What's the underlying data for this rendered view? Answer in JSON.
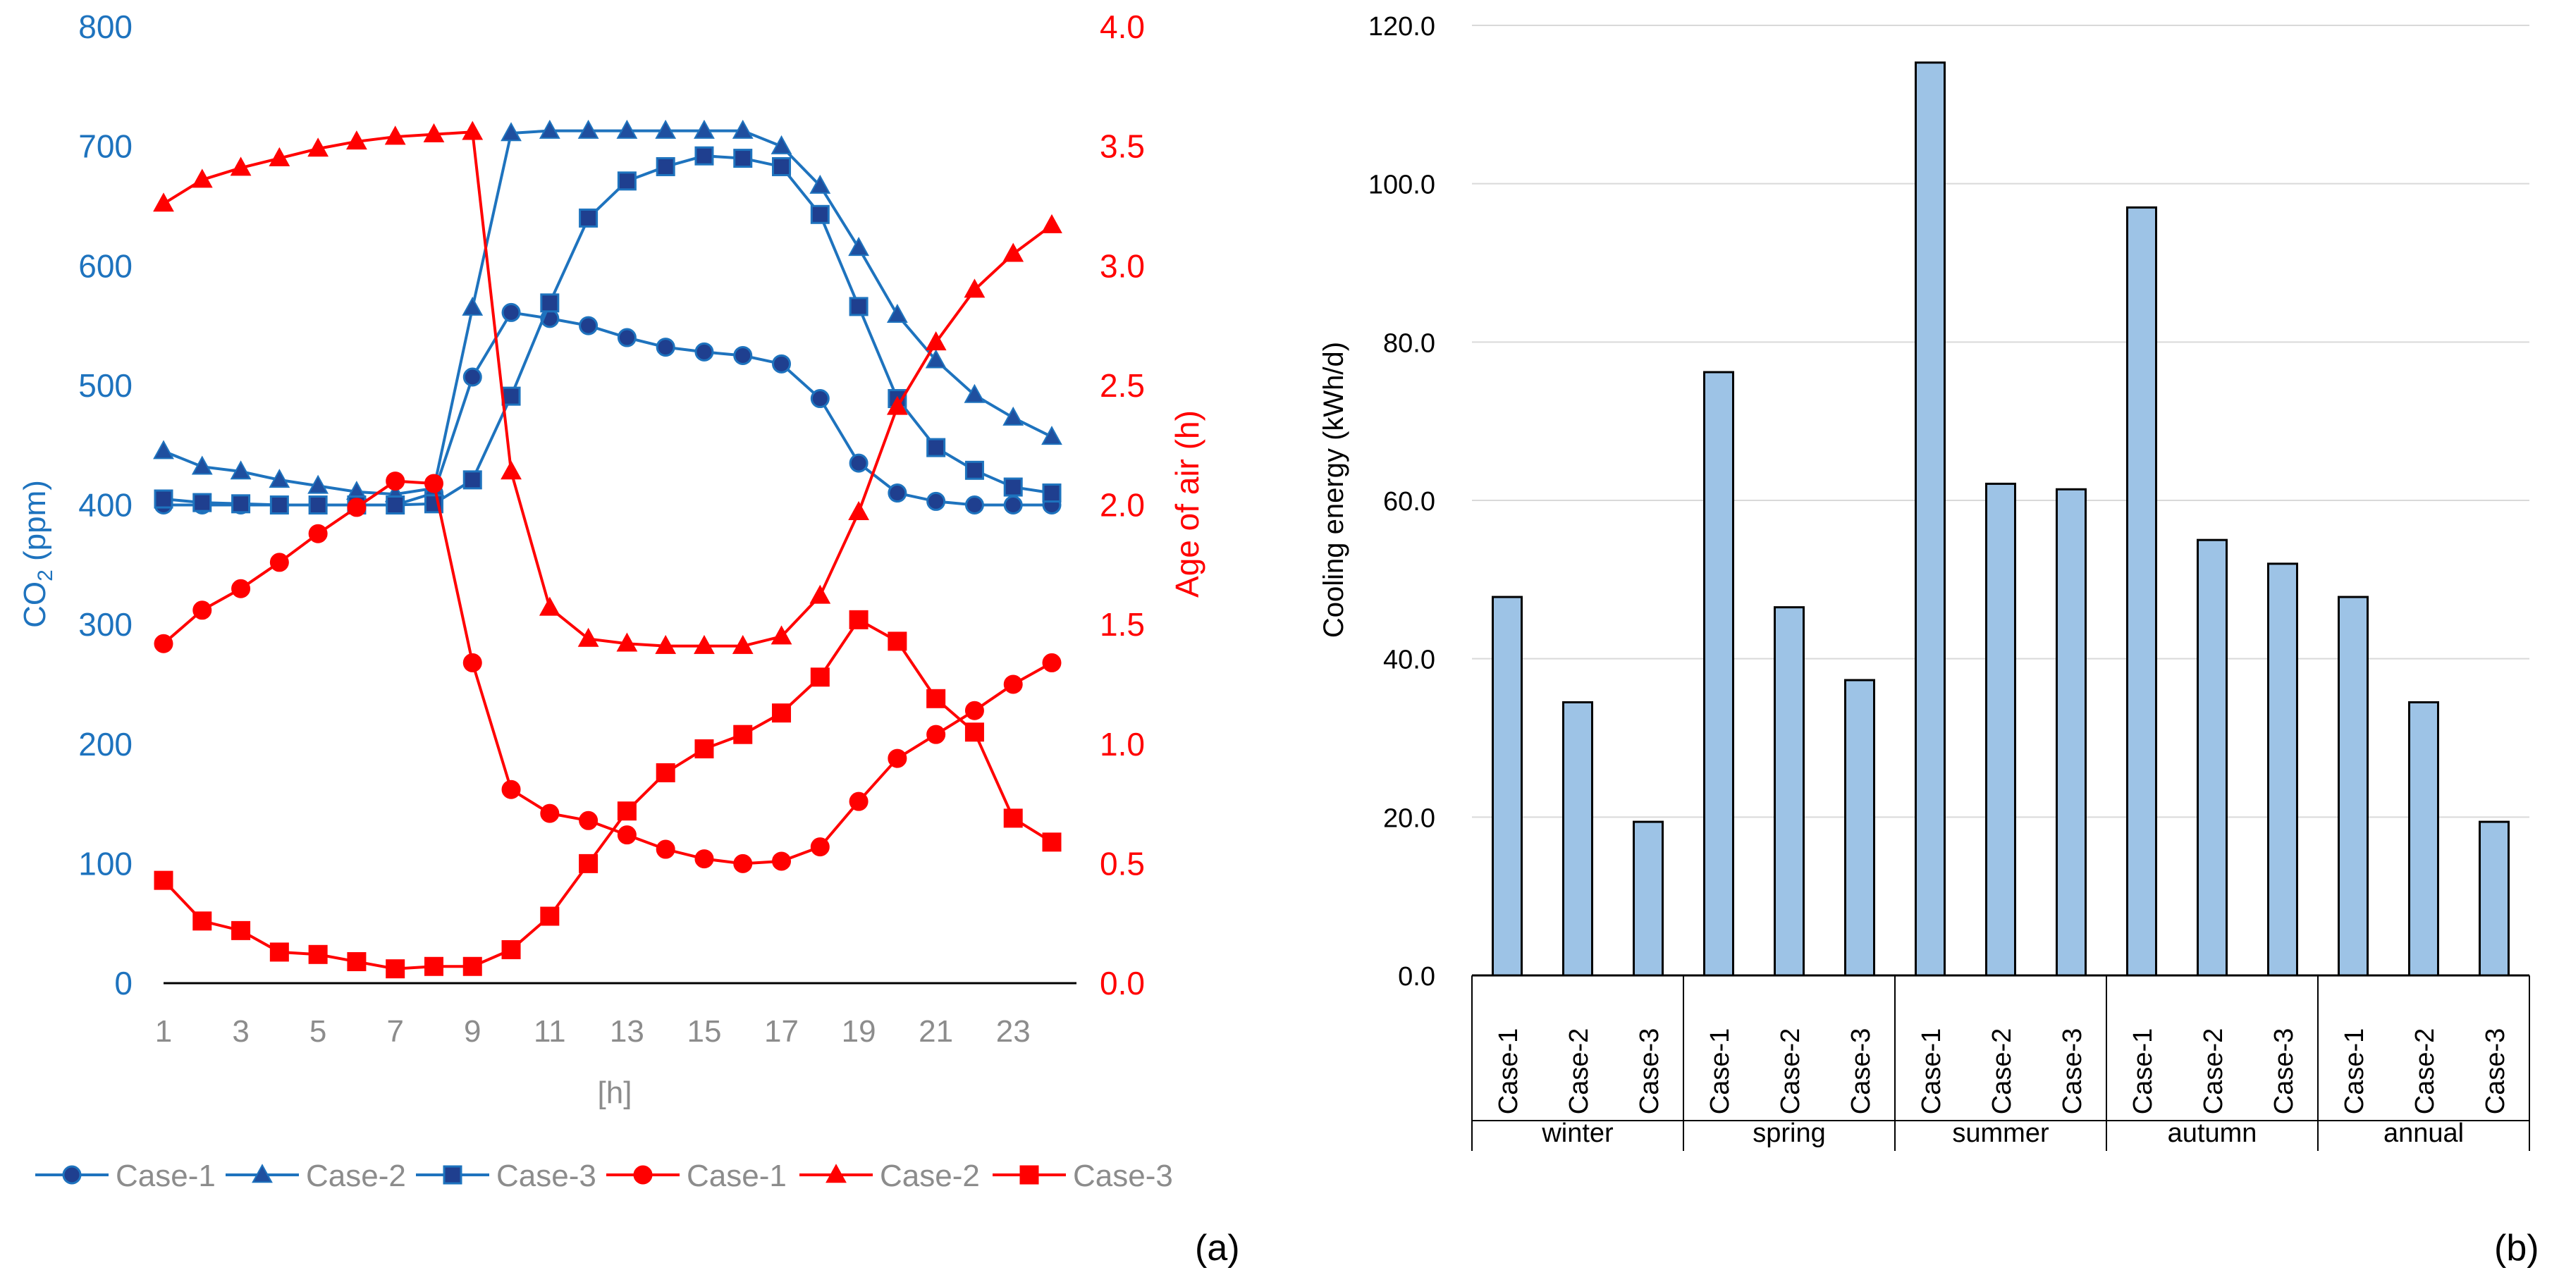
{
  "chart_data": [
    {
      "type": "line",
      "panel_label": "(a)",
      "xlabel": "[h]",
      "x": [
        1,
        2,
        3,
        4,
        5,
        6,
        7,
        8,
        9,
        10,
        11,
        12,
        13,
        14,
        15,
        16,
        17,
        18,
        19,
        20,
        21,
        22,
        23,
        24
      ],
      "x_tick_labels": [
        "1",
        "3",
        "5",
        "7",
        "9",
        "11",
        "13",
        "15",
        "17",
        "19",
        "21",
        "23"
      ],
      "y_left": {
        "label_main": "CO",
        "label_sub": "2",
        "label_rest": " (ppm)",
        "lim": [
          0,
          800
        ],
        "tick_labels": [
          "0",
          "100",
          "200",
          "300",
          "400",
          "500",
          "600",
          "700",
          "800"
        ]
      },
      "y_right": {
        "label": "Age of air (h)",
        "lim": [
          0,
          4
        ],
        "tick_labels": [
          "0.0",
          "0.5",
          "1.0",
          "1.5",
          "2.0",
          "2.5",
          "3.0",
          "3.5",
          "4.0"
        ]
      },
      "series": [
        {
          "name": "Case-1",
          "axis": "left",
          "marker": "circle",
          "color": "#1E73BE",
          "values": [
            400,
            400,
            400,
            400,
            400,
            400,
            400,
            410,
            507,
            561,
            556,
            550,
            540,
            532,
            528,
            525,
            518,
            489,
            435,
            410,
            403,
            400,
            400,
            400
          ]
        },
        {
          "name": "Case-2",
          "axis": "left",
          "marker": "triangle",
          "color": "#1E73BE",
          "values": [
            445,
            432,
            428,
            421,
            416,
            411,
            409,
            414,
            565,
            711,
            713,
            713,
            713,
            713,
            713,
            713,
            700,
            667,
            615,
            559,
            521,
            492,
            473,
            457
          ]
        },
        {
          "name": "Case-3",
          "axis": "left",
          "marker": "square",
          "color": "#1E73BE",
          "values": [
            405,
            402,
            401,
            400,
            400,
            400,
            400,
            401,
            421,
            491,
            569,
            640,
            671,
            683,
            692,
            690,
            683,
            643,
            566,
            489,
            448,
            429,
            415,
            410
          ]
        },
        {
          "name": "Case-1",
          "axis": "right",
          "marker": "circle",
          "color": "#FF0000",
          "values": [
            1.42,
            1.56,
            1.65,
            1.76,
            1.88,
            1.99,
            2.1,
            2.09,
            1.34,
            0.81,
            0.71,
            0.68,
            0.62,
            0.56,
            0.52,
            0.5,
            0.51,
            0.57,
            0.76,
            0.94,
            1.04,
            1.14,
            1.25,
            1.34
          ]
        },
        {
          "name": "Case-2",
          "axis": "right",
          "marker": "triangle",
          "color": "#FF0000",
          "values": [
            3.26,
            3.36,
            3.41,
            3.45,
            3.49,
            3.52,
            3.54,
            3.55,
            3.56,
            2.14,
            1.57,
            1.44,
            1.42,
            1.41,
            1.41,
            1.41,
            1.45,
            1.62,
            1.97,
            2.41,
            2.68,
            2.9,
            3.05,
            3.17
          ]
        },
        {
          "name": "Case-3",
          "axis": "right",
          "marker": "square",
          "color": "#FF0000",
          "values": [
            0.43,
            0.26,
            0.22,
            0.13,
            0.12,
            0.09,
            0.06,
            0.07,
            0.07,
            0.14,
            0.28,
            0.5,
            0.72,
            0.88,
            0.98,
            1.04,
            1.13,
            1.28,
            1.52,
            1.43,
            1.19,
            1.05,
            0.69,
            0.59
          ]
        }
      ],
      "legend": {
        "position": "bottom",
        "entries": [
          "Case-1",
          "Case-2",
          "Case-3",
          "Case-1",
          "Case-2",
          "Case-3"
        ]
      }
    },
    {
      "type": "bar",
      "panel_label": "(b)",
      "ylabel": "Cooling energy (kWh/d)",
      "ylim": [
        0,
        120
      ],
      "y_tick_labels": [
        "0.0",
        "20.0",
        "40.0",
        "60.0",
        "80.0",
        "100.0",
        "120.0"
      ],
      "bar_color": "#9DC3E6",
      "groups": [
        {
          "label": "winter",
          "categories": [
            "Case-1",
            "Case-2",
            "Case-3"
          ],
          "values": [
            47.8,
            34.5,
            19.4
          ]
        },
        {
          "label": "spring",
          "categories": [
            "Case-1",
            "Case-2",
            "Case-3"
          ],
          "values": [
            76.2,
            46.5,
            37.3
          ]
        },
        {
          "label": "summer",
          "categories": [
            "Case-1",
            "Case-2",
            "Case-3"
          ],
          "values": [
            115.3,
            62.1,
            61.4
          ]
        },
        {
          "label": "autumn",
          "categories": [
            "Case-1",
            "Case-2",
            "Case-3"
          ],
          "values": [
            97.0,
            55.0,
            52.0
          ]
        },
        {
          "label": "annual",
          "categories": [
            "Case-1",
            "Case-2",
            "Case-3"
          ],
          "values": [
            47.8,
            34.5,
            19.4
          ]
        }
      ]
    }
  ]
}
